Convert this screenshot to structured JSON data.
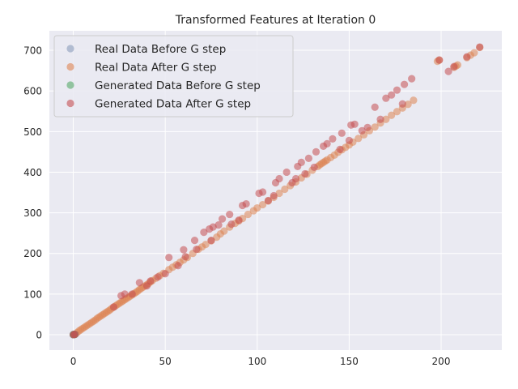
{
  "chart_data": {
    "type": "scatter",
    "title": "Transformed Features at Iteration 0",
    "xlabel": "",
    "ylabel": "",
    "xlim": [
      -13,
      233
    ],
    "ylim": [
      -38,
      748
    ],
    "xticks": [
      0,
      50,
      100,
      150,
      200
    ],
    "yticks": [
      0,
      100,
      200,
      300,
      400,
      500,
      600,
      700
    ],
    "grid": true,
    "legend_position": "top-left",
    "series": [
      {
        "name": "Real Data Before G step",
        "color": "#8a9cba",
        "points": [
          [
            0,
            0
          ],
          [
            0.3,
            0.4
          ],
          [
            0.5,
            0.2
          ],
          [
            1,
            1
          ],
          [
            0.8,
            0.6
          ],
          [
            0,
            0.5
          ]
        ]
      },
      {
        "name": "Real Data After G step",
        "color": "#dd8452",
        "points": [
          [
            2,
            5
          ],
          [
            3,
            9
          ],
          [
            4,
            12
          ],
          [
            5,
            15
          ],
          [
            6,
            18
          ],
          [
            7,
            21
          ],
          [
            8,
            24
          ],
          [
            9,
            27
          ],
          [
            10,
            30
          ],
          [
            11,
            33
          ],
          [
            12,
            36
          ],
          [
            13,
            40
          ],
          [
            14,
            43
          ],
          [
            15,
            46
          ],
          [
            16,
            49
          ],
          [
            17,
            52
          ],
          [
            18,
            55
          ],
          [
            19,
            58
          ],
          [
            20,
            61
          ],
          [
            21,
            65
          ],
          [
            22,
            68
          ],
          [
            23,
            71
          ],
          [
            24,
            74
          ],
          [
            25,
            77
          ],
          [
            26,
            80
          ],
          [
            27,
            83
          ],
          [
            28,
            86
          ],
          [
            29,
            89
          ],
          [
            30,
            92
          ],
          [
            31,
            95
          ],
          [
            32,
            98
          ],
          [
            33,
            101
          ],
          [
            34,
            104
          ],
          [
            35,
            107
          ],
          [
            36,
            111
          ],
          [
            37,
            114
          ],
          [
            38,
            117
          ],
          [
            39,
            120
          ],
          [
            40,
            123
          ],
          [
            41,
            126
          ],
          [
            42,
            130
          ],
          [
            43,
            133
          ],
          [
            45,
            139
          ],
          [
            47,
            145
          ],
          [
            49,
            151
          ],
          [
            52,
            160
          ],
          [
            54,
            166
          ],
          [
            56,
            172
          ],
          [
            58,
            178
          ],
          [
            60,
            184
          ],
          [
            62,
            190
          ],
          [
            65,
            200
          ],
          [
            68,
            210
          ],
          [
            70,
            216
          ],
          [
            72,
            222
          ],
          [
            75,
            231
          ],
          [
            78,
            240
          ],
          [
            80,
            248
          ],
          [
            82,
            255
          ],
          [
            85,
            265
          ],
          [
            88,
            274
          ],
          [
            90,
            280
          ],
          [
            92,
            286
          ],
          [
            95,
            296
          ],
          [
            98,
            305
          ],
          [
            100,
            312
          ],
          [
            103,
            320
          ],
          [
            106,
            329
          ],
          [
            109,
            338
          ],
          [
            112,
            348
          ],
          [
            115,
            358
          ],
          [
            118,
            367
          ],
          [
            121,
            376
          ],
          [
            124,
            386
          ],
          [
            127,
            395
          ],
          [
            130,
            405
          ],
          [
            133,
            414
          ],
          [
            134,
            418
          ],
          [
            135,
            421
          ],
          [
            136,
            424
          ],
          [
            137,
            427
          ],
          [
            138,
            430
          ],
          [
            140,
            436
          ],
          [
            142,
            442
          ],
          [
            144,
            449
          ],
          [
            146,
            455
          ],
          [
            148,
            461
          ],
          [
            150,
            467
          ],
          [
            152,
            474
          ],
          [
            155,
            483
          ],
          [
            158,
            492
          ],
          [
            161,
            502
          ],
          [
            164,
            511
          ],
          [
            167,
            521
          ],
          [
            170,
            530
          ],
          [
            173,
            540
          ],
          [
            176,
            549
          ],
          [
            179,
            558
          ],
          [
            182,
            567
          ],
          [
            185,
            577
          ],
          [
            198,
            673
          ],
          [
            199,
            676
          ],
          [
            207,
            658
          ],
          [
            208,
            661
          ],
          [
            209,
            664
          ],
          [
            214,
            682
          ],
          [
            216,
            688
          ],
          [
            218,
            694
          ],
          [
            221,
            707
          ]
        ]
      },
      {
        "name": "Generated Data Before G step",
        "color": "#55a868",
        "points": [
          [
            0,
            0
          ],
          [
            0.5,
            0.5
          ],
          [
            0.2,
            0.8
          ],
          [
            0.9,
            0.3
          ]
        ]
      },
      {
        "name": "Generated Data After G step",
        "color": "#c44e52",
        "points": [
          [
            22,
            68
          ],
          [
            26,
            96
          ],
          [
            28,
            100
          ],
          [
            32,
            100
          ],
          [
            36,
            128
          ],
          [
            40,
            120
          ],
          [
            42,
            132
          ],
          [
            46,
            142
          ],
          [
            50,
            150
          ],
          [
            52,
            190
          ],
          [
            57,
            170
          ],
          [
            60,
            209
          ],
          [
            61,
            192
          ],
          [
            66,
            232
          ],
          [
            67,
            210
          ],
          [
            71,
            252
          ],
          [
            74,
            260
          ],
          [
            75,
            232
          ],
          [
            76,
            265
          ],
          [
            79,
            270
          ],
          [
            81,
            285
          ],
          [
            85,
            296
          ],
          [
            86,
            272
          ],
          [
            90,
            282
          ],
          [
            92,
            318
          ],
          [
            94,
            322
          ],
          [
            101,
            348
          ],
          [
            103,
            351
          ],
          [
            106,
            330
          ],
          [
            109,
            342
          ],
          [
            110,
            374
          ],
          [
            112,
            384
          ],
          [
            116,
            400
          ],
          [
            119,
            374
          ],
          [
            121,
            384
          ],
          [
            122,
            414
          ],
          [
            124,
            424
          ],
          [
            126,
            396
          ],
          [
            128,
            434
          ],
          [
            131,
            412
          ],
          [
            132,
            450
          ],
          [
            136,
            464
          ],
          [
            138,
            470
          ],
          [
            141,
            482
          ],
          [
            145,
            456
          ],
          [
            146,
            496
          ],
          [
            150,
            478
          ],
          [
            151,
            516
          ],
          [
            153,
            518
          ],
          [
            157,
            502
          ],
          [
            160,
            510
          ],
          [
            164,
            560
          ],
          [
            167,
            530
          ],
          [
            170,
            582
          ],
          [
            173,
            590
          ],
          [
            176,
            602
          ],
          [
            179,
            568
          ],
          [
            180,
            616
          ],
          [
            184,
            630
          ],
          [
            199,
            676
          ],
          [
            204,
            648
          ],
          [
            207,
            660
          ],
          [
            214,
            684
          ],
          [
            221,
            708
          ],
          [
            0,
            0
          ],
          [
            0.5,
            0.5
          ],
          [
            1,
            1
          ]
        ]
      }
    ]
  }
}
